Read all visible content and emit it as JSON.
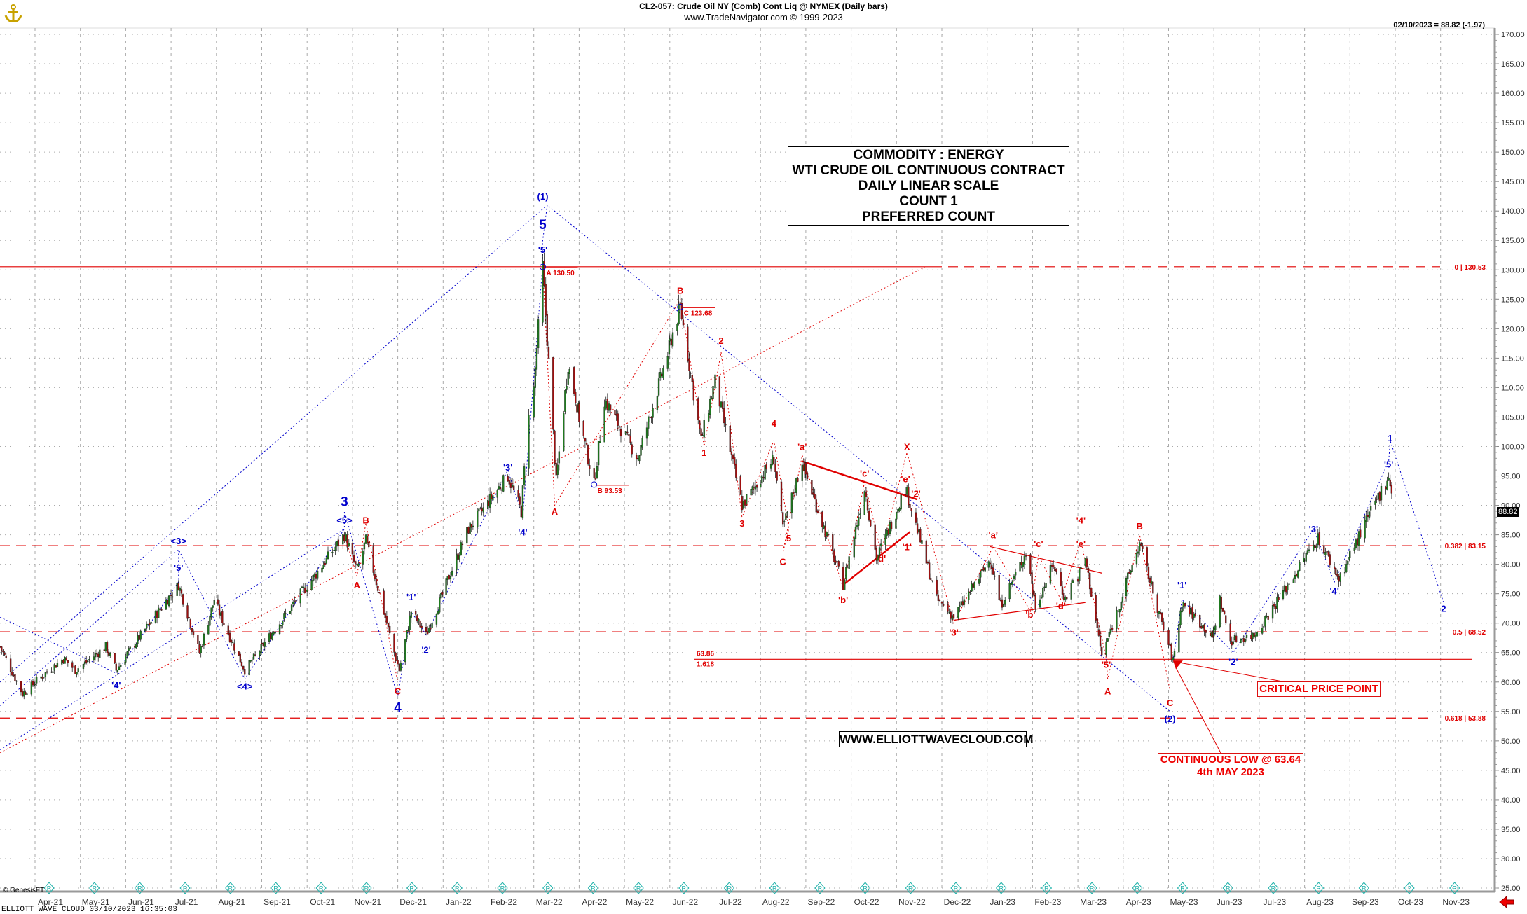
{
  "header": {
    "title": "CL2-057:  Crude Oil NY (Comb) Cont Liq @ NYMEX  (Daily bars)",
    "copyright": "www.TradeNavigator.com © 1999-2023",
    "quote": "02/10/2023 = 88.82 (-1.97)"
  },
  "info_box": [
    "COMMODITY : ENERGY",
    "WTI CRUDE OIL CONTINUOUS CONTRACT",
    "DAILY LINEAR SCALE",
    "COUNT 1",
    "PREFERRED COUNT"
  ],
  "website": "WWW.ELLIOTTWAVECLOUD.COM",
  "critical_label": "CRITICAL PRICE POINT",
  "low_label": [
    "CONTINUOUS LOW @ 63.64",
    "4th MAY 2023"
  ],
  "footer": "ELLIOTT WAVE CLOUD   03/10/2023 16:35:03",
  "genesis": "© GenesisFT",
  "last_price": "88.82",
  "colors": {
    "up": "#1f7a1f",
    "down": "#a01010",
    "red": "#e00000",
    "blue": "#0000cc"
  },
  "chart_data": {
    "type": "candlestick",
    "ylim": [
      25,
      170
    ],
    "y_ticks": [
      25,
      30,
      35,
      40,
      45,
      50,
      55,
      60,
      65,
      70,
      75,
      80,
      85,
      90,
      95,
      100,
      105,
      110,
      115,
      120,
      125,
      130,
      135,
      140,
      145,
      150,
      155,
      160,
      165,
      170
    ],
    "x_ticks": [
      "Apr-21",
      "May-21",
      "Jun-21",
      "Jul-21",
      "Aug-21",
      "Sep-21",
      "Oct-21",
      "Nov-21",
      "Dec-21",
      "Jan-22",
      "Feb-22",
      "Mar-22",
      "Apr-22",
      "May-22",
      "Jun-22",
      "Jul-22",
      "Aug-22",
      "Sep-22",
      "Oct-22",
      "Nov-22",
      "Dec-22",
      "Jan-23",
      "Feb-23",
      "Mar-23",
      "Apr-23",
      "May-23",
      "Jun-23",
      "Jul-23",
      "Aug-23",
      "Sep-23",
      "Oct-23",
      "Nov-23"
    ],
    "grid": true,
    "price_pivots": [
      [
        "2021-03-08",
        66
      ],
      [
        "2021-03-23",
        58
      ],
      [
        "2021-04-01",
        60
      ],
      [
        "2021-04-20",
        64
      ],
      [
        "2021-04-28",
        62
      ],
      [
        "2021-05-18",
        66
      ],
      [
        "2021-05-25",
        62
      ],
      [
        "2021-07-06",
        76.5
      ],
      [
        "2021-07-20",
        65
      ],
      [
        "2021-07-30",
        74
      ],
      [
        "2021-08-20",
        62
      ],
      [
        "2021-09-10",
        69
      ],
      [
        "2021-10-26",
        85
      ],
      [
        "2021-11-04",
        79
      ],
      [
        "2021-11-10",
        84
      ],
      [
        "2021-12-02",
        62
      ],
      [
        "2021-12-10",
        72
      ],
      [
        "2021-12-20",
        68
      ],
      [
        "2022-01-18",
        86
      ],
      [
        "2022-02-14",
        95
      ],
      [
        "2022-02-23",
        89
      ],
      [
        "2022-03-07",
        130.5
      ],
      [
        "2022-03-16",
        94
      ],
      [
        "2022-03-24",
        114
      ],
      [
        "2022-04-11",
        93.5
      ],
      [
        "2022-04-18",
        108
      ],
      [
        "2022-05-10",
        98
      ],
      [
        "2022-06-08",
        123.7
      ],
      [
        "2022-06-22",
        101
      ],
      [
        "2022-07-01",
        111
      ],
      [
        "2022-07-19",
        90
      ],
      [
        "2022-08-10",
        98
      ],
      [
        "2022-08-16",
        86
      ],
      [
        "2022-08-29",
        97.5
      ],
      [
        "2022-09-26",
        76.5
      ],
      [
        "2022-10-10",
        93
      ],
      [
        "2022-10-18",
        81
      ],
      [
        "2022-11-07",
        93
      ],
      [
        "2022-11-28",
        74
      ],
      [
        "2022-12-09",
        71
      ],
      [
        "2023-01-03",
        81
      ],
      [
        "2023-01-10",
        73
      ],
      [
        "2023-01-27",
        82
      ],
      [
        "2023-02-03",
        73
      ],
      [
        "2023-02-15",
        80
      ],
      [
        "2023-02-23",
        74
      ],
      [
        "2023-03-06",
        81
      ],
      [
        "2023-03-17",
        64.5
      ],
      [
        "2023-04-12",
        83.5
      ],
      [
        "2023-05-04",
        63.6
      ],
      [
        "2023-05-10",
        73.5
      ],
      [
        "2023-05-31",
        67.5
      ],
      [
        "2023-06-05",
        74
      ],
      [
        "2023-06-12",
        67
      ],
      [
        "2023-06-28",
        68
      ],
      [
        "2023-08-10",
        84.5
      ],
      [
        "2023-08-24",
        77.5
      ],
      [
        "2023-09-27",
        95
      ],
      [
        "2023-10-02",
        88.82
      ]
    ],
    "fib_levels": [
      {
        "label": "0 | 130.53",
        "value": 130.53
      },
      {
        "label": "0.382 | 83.15",
        "value": 83.15
      },
      {
        "label": "0.5 | 68.52",
        "value": 68.52
      },
      {
        "label": "0.618 | 53.88",
        "value": 53.88
      }
    ],
    "level_1618": {
      "top": "63.86",
      "bottom": "1.618",
      "value": 63.86
    },
    "price_tags": [
      {
        "text": "A 130.50",
        "date": "2022-03-07",
        "value": 130.5
      },
      {
        "text": "B 93.53",
        "date": "2022-04-11",
        "value": 93.53
      },
      {
        "text": "C 123.68",
        "date": "2022-06-08",
        "value": 123.68
      }
    ],
    "wave_labels": [
      {
        "t": "'4'",
        "d": "2021-05-25",
        "p": 59.5,
        "c": "blue"
      },
      {
        "t": "'5'",
        "d": "2021-07-06",
        "p": 79.5,
        "c": "blue"
      },
      {
        "t": "<3>",
        "d": "2021-07-06",
        "p": 84,
        "c": "blue"
      },
      {
        "t": "<4>",
        "d": "2021-08-20",
        "p": 59.3,
        "c": "blue"
      },
      {
        "t": "<5>",
        "d": "2021-10-26",
        "p": 87.5,
        "c": "blue"
      },
      {
        "t": "3",
        "d": "2021-10-26",
        "p": 90.5,
        "c": "blue",
        "big": true
      },
      {
        "t": "A",
        "d": "2021-11-04",
        "p": 76.5,
        "c": "red"
      },
      {
        "t": "B",
        "d": "2021-11-10",
        "p": 87.5,
        "c": "red"
      },
      {
        "t": "C",
        "d": "2021-12-01",
        "p": 58.5,
        "c": "red"
      },
      {
        "t": "4",
        "d": "2021-12-01",
        "p": 55.5,
        "c": "blue",
        "big": true
      },
      {
        "t": "'1'",
        "d": "2021-12-10",
        "p": 74.5,
        "c": "blue"
      },
      {
        "t": "'2'",
        "d": "2021-12-20",
        "p": 65.5,
        "c": "blue"
      },
      {
        "t": "'3'",
        "d": "2022-02-14",
        "p": 96.5,
        "c": "blue"
      },
      {
        "t": "'4'",
        "d": "2022-02-24",
        "p": 85.5,
        "c": "blue"
      },
      {
        "t": "'5'",
        "d": "2022-03-07",
        "p": 133.5,
        "c": "blue"
      },
      {
        "t": "5",
        "d": "2022-03-07",
        "p": 137.5,
        "c": "blue",
        "big": true
      },
      {
        "t": "(1)",
        "d": "2022-03-07",
        "p": 142.5,
        "c": "blue"
      },
      {
        "t": "A",
        "d": "2022-03-15",
        "p": 89,
        "c": "red"
      },
      {
        "t": "B",
        "d": "2022-06-08",
        "p": 126.5,
        "c": "red"
      },
      {
        "t": "1",
        "d": "2022-06-24",
        "p": 99,
        "c": "red"
      },
      {
        "t": "2",
        "d": "2022-07-05",
        "p": 118,
        "c": "red"
      },
      {
        "t": "3",
        "d": "2022-07-19",
        "p": 87,
        "c": "red"
      },
      {
        "t": "4",
        "d": "2022-08-10",
        "p": 104,
        "c": "red"
      },
      {
        "t": "5",
        "d": "2022-08-20",
        "p": 84.5,
        "c": "red"
      },
      {
        "t": "C",
        "d": "2022-08-16",
        "p": 80.5,
        "c": "red"
      },
      {
        "t": "'a'",
        "d": "2022-08-29",
        "p": 100,
        "c": "red"
      },
      {
        "t": "'b'",
        "d": "2022-09-26",
        "p": 74,
        "c": "red"
      },
      {
        "t": "'c'",
        "d": "2022-10-10",
        "p": 95.5,
        "c": "red"
      },
      {
        "t": "'d'",
        "d": "2022-10-21",
        "p": 81,
        "c": "red"
      },
      {
        "t": "X",
        "d": "2022-11-08",
        "p": 100,
        "c": "red"
      },
      {
        "t": "'e'",
        "d": "2022-11-07",
        "p": 94.5,
        "c": "red"
      },
      {
        "t": "'2'",
        "d": "2022-11-14",
        "p": 92,
        "c": "red"
      },
      {
        "t": "'1'",
        "d": "2022-11-08",
        "p": 83,
        "c": "red"
      },
      {
        "t": "'3'",
        "d": "2022-12-09",
        "p": 68.5,
        "c": "red"
      },
      {
        "t": "'a'",
        "d": "2023-01-05",
        "p": 85,
        "c": "red"
      },
      {
        "t": "'b'",
        "d": "2023-01-30",
        "p": 71.5,
        "c": "red"
      },
      {
        "t": "'c'",
        "d": "2023-02-05",
        "p": 83.5,
        "c": "red"
      },
      {
        "t": "'d'",
        "d": "2023-02-20",
        "p": 73,
        "c": "red"
      },
      {
        "t": "'4'",
        "d": "2023-03-03",
        "p": 87.5,
        "c": "red"
      },
      {
        "t": "'e'",
        "d": "2023-03-03",
        "p": 83.5,
        "c": "red"
      },
      {
        "t": "'5'",
        "d": "2023-03-20",
        "p": 63,
        "c": "red"
      },
      {
        "t": "A",
        "d": "2023-03-21",
        "p": 58.5,
        "c": "red"
      },
      {
        "t": "B",
        "d": "2023-04-12",
        "p": 86.5,
        "c": "red"
      },
      {
        "t": "C",
        "d": "2023-05-02",
        "p": 56.5,
        "c": "red"
      },
      {
        "t": "(2)",
        "d": "2023-05-02",
        "p": 53.8,
        "c": "blue"
      },
      {
        "t": "'1'",
        "d": "2023-05-10",
        "p": 76.5,
        "c": "blue"
      },
      {
        "t": "'2'",
        "d": "2023-06-14",
        "p": 63.5,
        "c": "blue"
      },
      {
        "t": "'3'",
        "d": "2023-08-07",
        "p": 86,
        "c": "blue"
      },
      {
        "t": "'4'",
        "d": "2023-08-21",
        "p": 75.5,
        "c": "blue"
      },
      {
        "t": "'5'",
        "d": "2023-09-27",
        "p": 97,
        "c": "blue"
      },
      {
        "t": "1",
        "d": "2023-09-28",
        "p": 101.5,
        "c": "blue"
      },
      {
        "t": "2",
        "d": "2023-11-03",
        "p": 72.5,
        "c": "blue"
      }
    ],
    "blue_paths": [
      [
        [
          "2021-03-08",
          71
        ],
        [
          "2021-05-25",
          61.5
        ],
        [
          "2021-07-06",
          77
        ],
        [
          "2021-07-06",
          82.5
        ],
        [
          "2021-08-20",
          60.5
        ],
        [
          "2021-10-26",
          86
        ],
        [
          "2021-10-26",
          89
        ],
        [
          "2021-12-01",
          57.5
        ],
        [
          "2021-12-10",
          72
        ],
        [
          "2021-12-20",
          68
        ],
        [
          "2022-02-14",
          96
        ],
        [
          "2022-02-24",
          88
        ],
        [
          "2022-03-07",
          131
        ],
        [
          "2022-03-07",
          135
        ],
        [
          "2022-03-10",
          141
        ],
        [
          "2023-05-02",
          55
        ]
      ],
      [
        [
          "2023-05-04",
          63.6
        ],
        [
          "2023-05-10",
          74
        ],
        [
          "2023-06-14",
          65
        ],
        [
          "2023-08-07",
          86
        ],
        [
          "2023-08-21",
          77
        ],
        [
          "2023-09-27",
          97.5
        ],
        [
          "2023-09-28",
          101
        ],
        [
          "2023-11-03",
          73.5
        ]
      ],
      [
        [
          "2021-03-08",
          60
        ],
        [
          "2022-03-10",
          141
        ]
      ],
      [
        [
          "2021-03-08",
          48.5
        ],
        [
          "2021-10-26",
          86
        ]
      ],
      [
        [
          "2021-03-08",
          56
        ],
        [
          "2021-07-06",
          82.5
        ]
      ]
    ],
    "red_paths": [
      [
        [
          "2021-03-08",
          48
        ],
        [
          "2022-11-20",
          130.5
        ]
      ],
      [
        [
          "2021-10-26",
          85
        ],
        [
          "2021-11-04",
          78
        ],
        [
          "2021-11-10",
          87
        ],
        [
          "2021-12-01",
          60
        ]
      ],
      [
        [
          "2022-03-07",
          130.5
        ],
        [
          "2022-03-15",
          90
        ],
        [
          "2022-06-08",
          125
        ],
        [
          "2022-06-24",
          100
        ],
        [
          "2022-07-05",
          116
        ],
        [
          "2022-07-19",
          88
        ],
        [
          "2022-08-10",
          101
        ],
        [
          "2022-08-20",
          86
        ],
        [
          "2022-08-16",
          82
        ],
        [
          "2022-08-29",
          98.5
        ],
        [
          "2022-09-26",
          76
        ],
        [
          "2022-10-10",
          94
        ],
        [
          "2022-10-21",
          82
        ],
        [
          "2022-11-08",
          99
        ],
        [
          "2022-12-09",
          70
        ],
        [
          "2023-01-05",
          83
        ],
        [
          "2023-01-30",
          72
        ],
        [
          "2023-02-05",
          81.5
        ],
        [
          "2023-02-20",
          74
        ],
        [
          "2023-03-03",
          84
        ],
        [
          "2023-03-20",
          64
        ],
        [
          "2023-03-21",
          60.5
        ],
        [
          "2023-04-12",
          85
        ],
        [
          "2023-05-02",
          58.5
        ]
      ]
    ],
    "red_solid_lines": [
      {
        "from": [
          "2022-08-29",
          97.5
        ],
        "to": [
          "2022-11-15",
          91
        ],
        "w": 2.5
      },
      {
        "from": [
          "2022-09-26",
          76.5
        ],
        "to": [
          "2022-11-10",
          85.5
        ],
        "w": 2.5
      },
      {
        "from": [
          "2022-12-09",
          70.5
        ],
        "to": [
          "2023-03-06",
          73.5
        ],
        "w": 1.2
      },
      {
        "from": [
          "2023-01-03",
          83
        ],
        "to": [
          "2023-03-17",
          78.5
        ],
        "w": 1.2
      }
    ]
  }
}
